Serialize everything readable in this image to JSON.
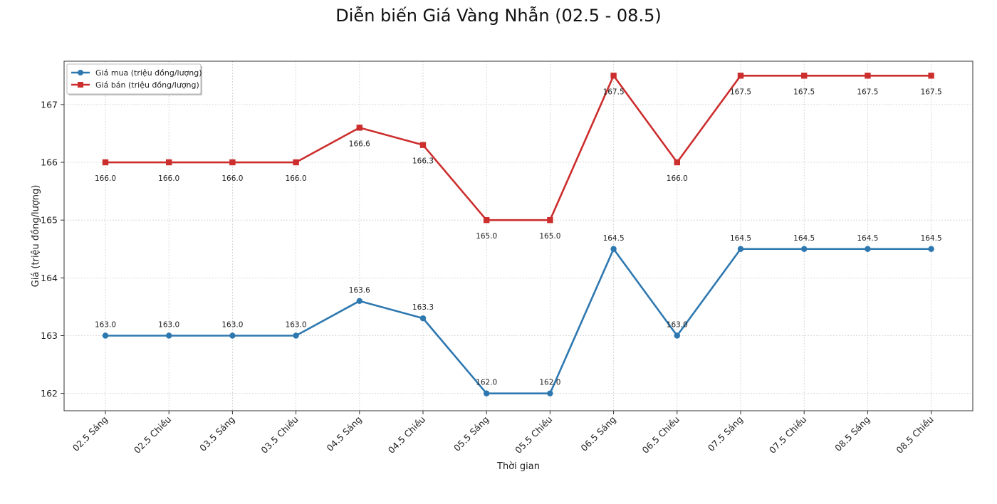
{
  "chart_data": {
    "type": "line",
    "title": "Diễn biến Giá Vàng Nhẫn (02.5 - 08.5)",
    "xlabel": "Thời gian",
    "ylabel": "Giá (triệu đồng/lượng)",
    "ylim": [
      161.7,
      167.75
    ],
    "yticks": [
      162,
      163,
      164,
      165,
      166,
      167
    ],
    "grid": true,
    "legend_position": "top-left",
    "categories": [
      "02.5 Sáng",
      "02.5 Chiều",
      "03.5 Sáng",
      "03.5 Chiều",
      "04.5 Sáng",
      "04.5 Chiều",
      "05.5 Sáng",
      "05.5 Chiều",
      "06.5 Sáng",
      "06.5 Chiều",
      "07.5 Sáng",
      "07.5 Chiều",
      "08.5 Sáng",
      "08.5 Chiều"
    ],
    "series": [
      {
        "name": "Giá mua (triệu đồng/lượng)",
        "color": "#2e78b0",
        "marker": "circle",
        "values": [
          163.0,
          163.0,
          163.0,
          163.0,
          163.6,
          163.3,
          162.0,
          162.0,
          164.5,
          163.0,
          164.5,
          164.5,
          164.5,
          164.5
        ],
        "labels": [
          "163.0",
          "163.0",
          "163.0",
          "163.0",
          "163.6",
          "163.3",
          "162.0",
          "162.0",
          "164.5",
          "163.0",
          "164.5",
          "164.5",
          "164.5",
          "164.5"
        ],
        "label_position": "above"
      },
      {
        "name": "Giá bán (triệu đồng/lượng)",
        "color": "#cc2d2d",
        "marker": "square",
        "values": [
          166.0,
          166.0,
          166.0,
          166.0,
          166.6,
          166.3,
          165.0,
          165.0,
          167.5,
          166.0,
          167.5,
          167.5,
          167.5,
          167.5
        ],
        "labels": [
          "166.0",
          "166.0",
          "166.0",
          "166.0",
          "166.6",
          "166.3",
          "165.0",
          "165.0",
          "167.5",
          "166.0",
          "167.5",
          "167.5",
          "167.5",
          "167.5"
        ],
        "label_position": "below"
      }
    ]
  }
}
